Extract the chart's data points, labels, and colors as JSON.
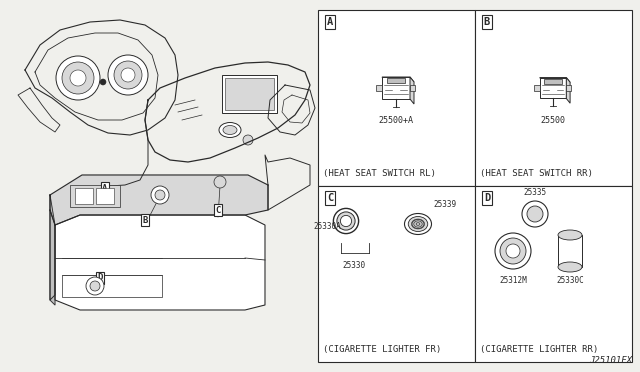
{
  "bg_color": "#f0f0ec",
  "line_color": "#2a2a2a",
  "white": "#ffffff",
  "gray_light": "#d8d8d8",
  "gray_mid": "#c0c0c0",
  "title_code": "J25101FX",
  "caption_A": "(HEAT SEAT SWITCH RL)",
  "caption_B": "(HEAT SEAT SWITCH RR)",
  "caption_C": "(CIGARETTE LIGHTER FR)",
  "caption_D": "(CIGARETTE LIGHTER RR)",
  "part_A": "25500+A",
  "part_B": "25500",
  "parts_C": [
    "25330A",
    "25339",
    "25330"
  ],
  "parts_D": [
    "25335",
    "25312M",
    "25330C"
  ],
  "font_size_caption": 6.5,
  "font_size_part": 6.0,
  "font_size_label": 7.5,
  "font_size_code": 6.5
}
